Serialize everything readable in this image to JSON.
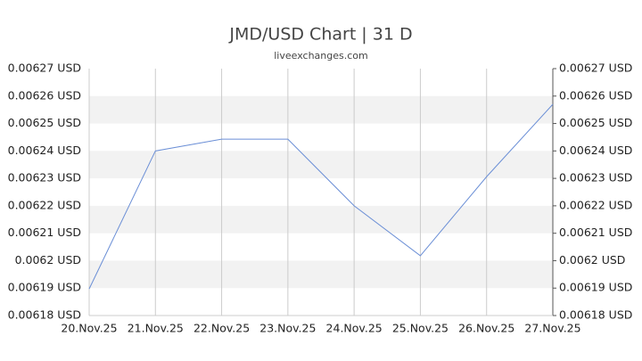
{
  "chart_data": {
    "type": "line",
    "title": "JMD/USD Chart | 31 D",
    "subtitle": "liveexchanges.com",
    "categories": [
      "20.Nov.25",
      "21.Nov.25",
      "22.Nov.25",
      "23.Nov.25",
      "24.Nov.25",
      "25.Nov.25",
      "26.Nov.25",
      "27.Nov.25"
    ],
    "series": [
      {
        "name": "JMD/USD",
        "color": "#6b8fd6",
        "values": [
          0.0061897,
          0.00624,
          0.0062443,
          0.0062443,
          0.00622,
          0.0062018,
          0.0062306,
          0.006257
        ]
      }
    ],
    "ylim": [
      0.00618,
      0.00627
    ],
    "yticks": [
      {
        "value": 0.00618,
        "label": "0.00618 USD"
      },
      {
        "value": 0.00619,
        "label": "0.00619 USD"
      },
      {
        "value": 0.0062,
        "label": "0.0062 USD"
      },
      {
        "value": 0.00621,
        "label": "0.00621 USD"
      },
      {
        "value": 0.00622,
        "label": "0.00622 USD"
      },
      {
        "value": 0.00623,
        "label": "0.00623 USD"
      },
      {
        "value": 0.00624,
        "label": "0.00624 USD"
      },
      {
        "value": 0.00625,
        "label": "0.00625 USD"
      },
      {
        "value": 0.00626,
        "label": "0.00626 USD"
      },
      {
        "value": 0.00627,
        "label": "0.00627 USD"
      }
    ],
    "grid": true
  }
}
